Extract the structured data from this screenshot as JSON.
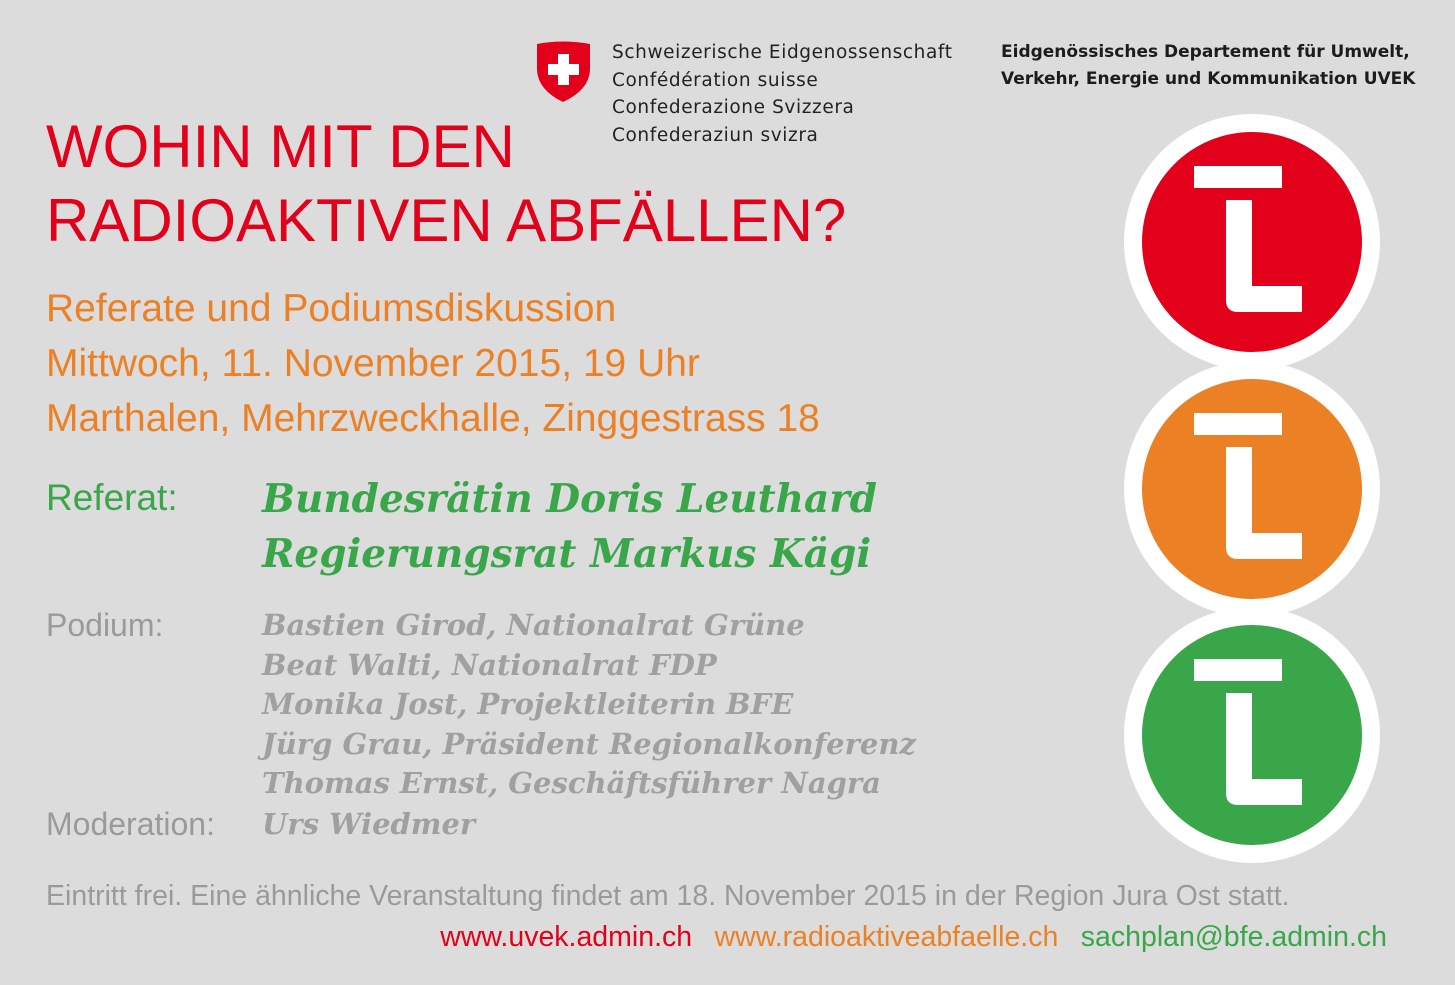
{
  "header": {
    "federation_lines": [
      "Schweizerische Eidgenossenschaft",
      "Confédération suisse",
      "Confederazione Svizzera",
      "Confederaziun svizra"
    ],
    "department_lines": [
      "Eidgenössisches Departement für Umwelt,",
      "Verkehr, Energie und Kommunikation UVEK"
    ],
    "logo_icon": "swiss-coat-of-arms-icon"
  },
  "title_lines": [
    "WOHIN MIT DEN",
    "RADIOAKTIVEN ABFÄLLEN?"
  ],
  "event_lines": [
    "Referate und Podiumsdiskussion",
    "Mittwoch, 11. November 2015, 19 Uhr",
    "Marthalen, Mehrzweckhalle, Zinggestrass 18"
  ],
  "referat": {
    "label": "Referat:",
    "speakers": [
      "Bundesrätin Doris Leuthard",
      "Regierungsrat Markus Kägi"
    ]
  },
  "podium": {
    "label": "Podium:",
    "members": [
      "Bastien Girod, Nationalrat Grüne",
      "Beat Walti, Nationalrat FDP",
      "Monika Jost, Projektleiterin BFE",
      "Jürg Grau, Präsident Regionalkonferenz",
      "Thomas Ernst, Geschäftsführer Nagra"
    ]
  },
  "moderation": {
    "label": "Moderation:",
    "name": "Urs Wiedmer"
  },
  "footer": {
    "note": "Eintritt frei. Eine ähnliche Veranstaltung findet am 18. November 2015 in der Region Jura Ost statt.",
    "links": [
      "www.uvek.admin.ch",
      "www.radioaktiveabfaelle.ch",
      "sachplan@bfe.admin.ch"
    ]
  },
  "colors": {
    "red": "#e2001a",
    "orange": "#ec8025",
    "green": "#3aa64a",
    "gray": "#9a9a9a",
    "background": "#dcdcdd"
  },
  "signal_icons": [
    "red-repository-icon",
    "orange-repository-icon",
    "green-repository-icon"
  ]
}
